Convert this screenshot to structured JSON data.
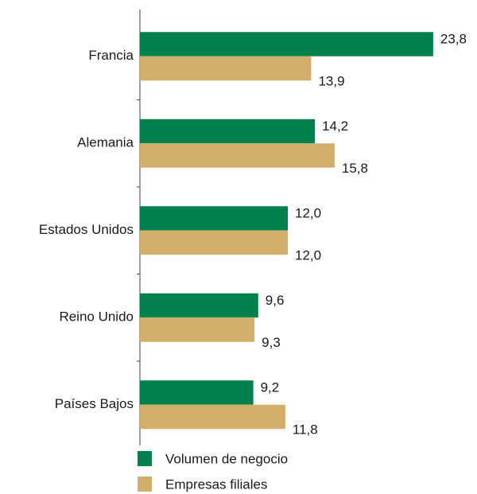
{
  "chart_data": {
    "type": "bar",
    "orientation": "horizontal",
    "categories": [
      "Francia",
      "Alemania",
      "Estados Unidos",
      "Reino Unido",
      "Países Bajos"
    ],
    "series": [
      {
        "name": "Volumen de negocio",
        "color": "#00814b",
        "values": [
          23.8,
          14.2,
          12.0,
          9.6,
          9.2
        ],
        "value_labels": [
          "23,8",
          "14,2",
          "12,0",
          "9,6",
          "9,2"
        ]
      },
      {
        "name": "Empresas filiales",
        "color": "#d3ad6a",
        "values": [
          13.9,
          15.8,
          12.0,
          9.3,
          11.8
        ],
        "value_labels": [
          "13,9",
          "15,8",
          "12,0",
          "9,3",
          "11,8"
        ]
      }
    ],
    "legend": "bottom"
  }
}
